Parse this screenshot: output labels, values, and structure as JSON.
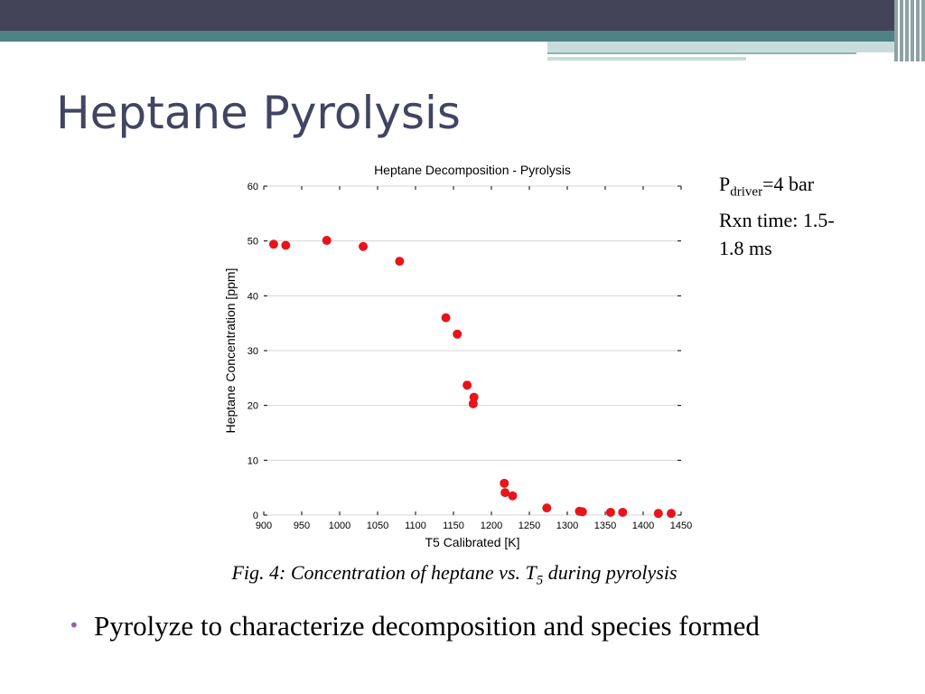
{
  "slide": {
    "title": "Heptane Pyrolysis",
    "notes": {
      "pressure_symbol": "P",
      "pressure_subscript": "driver",
      "pressure_value": "=4 bar",
      "rxn_time_line1": "Rxn time: 1.5-",
      "rxn_time_line2": "1.8 ms"
    },
    "caption": {
      "prefix": "Fig. 4: Concentration of heptane vs. T",
      "subscript": "5",
      "suffix": " during pyrolysis"
    },
    "bullets": [
      {
        "marker": "•",
        "text": "Pyrolyze to characterize decomposition and species formed"
      }
    ]
  },
  "chart_data": {
    "type": "scatter",
    "title": "Heptane Decomposition - Pyrolysis",
    "xlabel": "T5 Calibrated [K]",
    "ylabel": "Heptane Concentration [ppm]",
    "xlim": [
      900,
      1450
    ],
    "ylim": [
      0,
      60
    ],
    "x_ticks": [
      900,
      950,
      1000,
      1050,
      1100,
      1150,
      1200,
      1250,
      1300,
      1350,
      1400,
      1450
    ],
    "y_ticks": [
      0,
      10,
      20,
      30,
      40,
      50,
      60
    ],
    "grid": "horizontal",
    "marker_color": "#e8141b",
    "points": [
      [
        913,
        49.4
      ],
      [
        929,
        49.2
      ],
      [
        983,
        50.1
      ],
      [
        1031,
        49.0
      ],
      [
        1079,
        46.3
      ],
      [
        1140,
        36.0
      ],
      [
        1155,
        33.0
      ],
      [
        1168,
        23.7
      ],
      [
        1177,
        21.5
      ],
      [
        1176,
        20.3
      ],
      [
        1217,
        5.8
      ],
      [
        1218,
        4.1
      ],
      [
        1228,
        3.5
      ],
      [
        1273,
        1.3
      ],
      [
        1316,
        0.7
      ],
      [
        1320,
        0.6
      ],
      [
        1357,
        0.5
      ],
      [
        1373,
        0.5
      ],
      [
        1420,
        0.3
      ],
      [
        1437,
        0.3
      ]
    ]
  }
}
